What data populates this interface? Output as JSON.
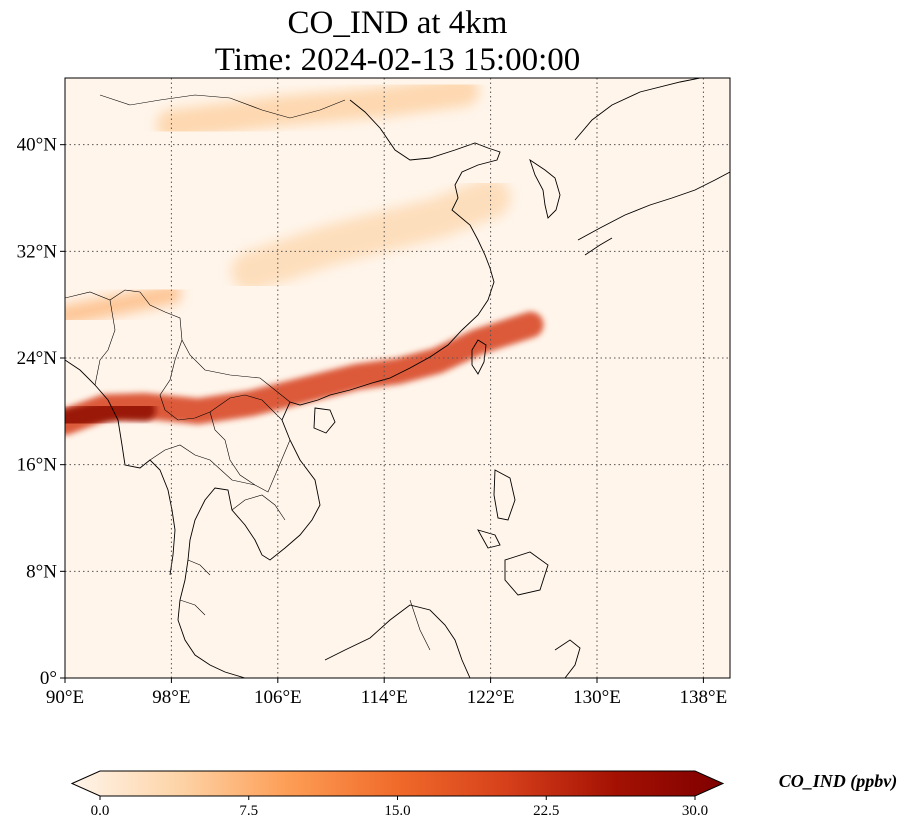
{
  "title": {
    "line1": "CO_IND at 4km",
    "line2": "Time: 2024-02-13 15:00:00"
  },
  "map": {
    "lon_range": [
      90,
      140
    ],
    "lat_range": [
      0,
      45
    ],
    "x_ticks": [
      "90°E",
      "98°E",
      "106°E",
      "114°E",
      "122°E",
      "130°E",
      "138°E"
    ],
    "x_tick_values": [
      90,
      98,
      106,
      114,
      122,
      130,
      138
    ],
    "y_ticks": [
      "0°",
      "8°N",
      "16°N",
      "24°N",
      "32°N",
      "40°N"
    ],
    "y_tick_values": [
      0,
      8,
      16,
      24,
      32,
      40
    ],
    "gridlines": "dotted",
    "background_color": "#fff5eb",
    "coastline_color": "#000000"
  },
  "colorbar": {
    "label": "CO_IND (ppbv)",
    "ticks": [
      "0.0",
      "7.5",
      "15.0",
      "22.5",
      "30.0"
    ],
    "tick_values": [
      0,
      7.5,
      15,
      22.5,
      30
    ],
    "range": [
      0,
      30
    ],
    "colormap": "OrRd",
    "extend": "both",
    "colors": [
      "#fff5eb",
      "#fdd3a6",
      "#fd9d55",
      "#f06a2a",
      "#d6401b",
      "#a41103",
      "#7f0000"
    ]
  },
  "plumes": [
    {
      "name": "main-band",
      "value": 20,
      "path_lonlat": [
        [
          90,
          19.2
        ],
        [
          93,
          20.3
        ],
        [
          96,
          20.4
        ],
        [
          100,
          20.0
        ],
        [
          104,
          20.6
        ],
        [
          108,
          21.6
        ],
        [
          112,
          22.6
        ],
        [
          115,
          23.0
        ],
        [
          118,
          23.8
        ],
        [
          121,
          25.2
        ],
        [
          125,
          26.5
        ]
      ]
    },
    {
      "name": "myanmar-core",
      "value": 28,
      "path_lonlat": [
        [
          90,
          19.3
        ],
        [
          92,
          19.8
        ],
        [
          94,
          20.2
        ],
        [
          96,
          20.1
        ]
      ]
    },
    {
      "name": "north-band",
      "value": 7,
      "path_lonlat": [
        [
          90,
          27.2
        ],
        [
          94,
          28.0
        ],
        [
          98,
          28.8
        ]
      ]
    },
    {
      "name": "yellow-sea-band",
      "value": 4,
      "path_lonlat": [
        [
          104,
          30.5
        ],
        [
          110,
          32.5
        ],
        [
          118,
          34.5
        ],
        [
          122,
          36.0
        ]
      ]
    },
    {
      "name": "northern-band",
      "value": 5,
      "path_lonlat": [
        [
          98,
          41.5
        ],
        [
          106,
          42.5
        ],
        [
          114,
          43.2
        ],
        [
          120,
          44.0
        ]
      ]
    }
  ]
}
